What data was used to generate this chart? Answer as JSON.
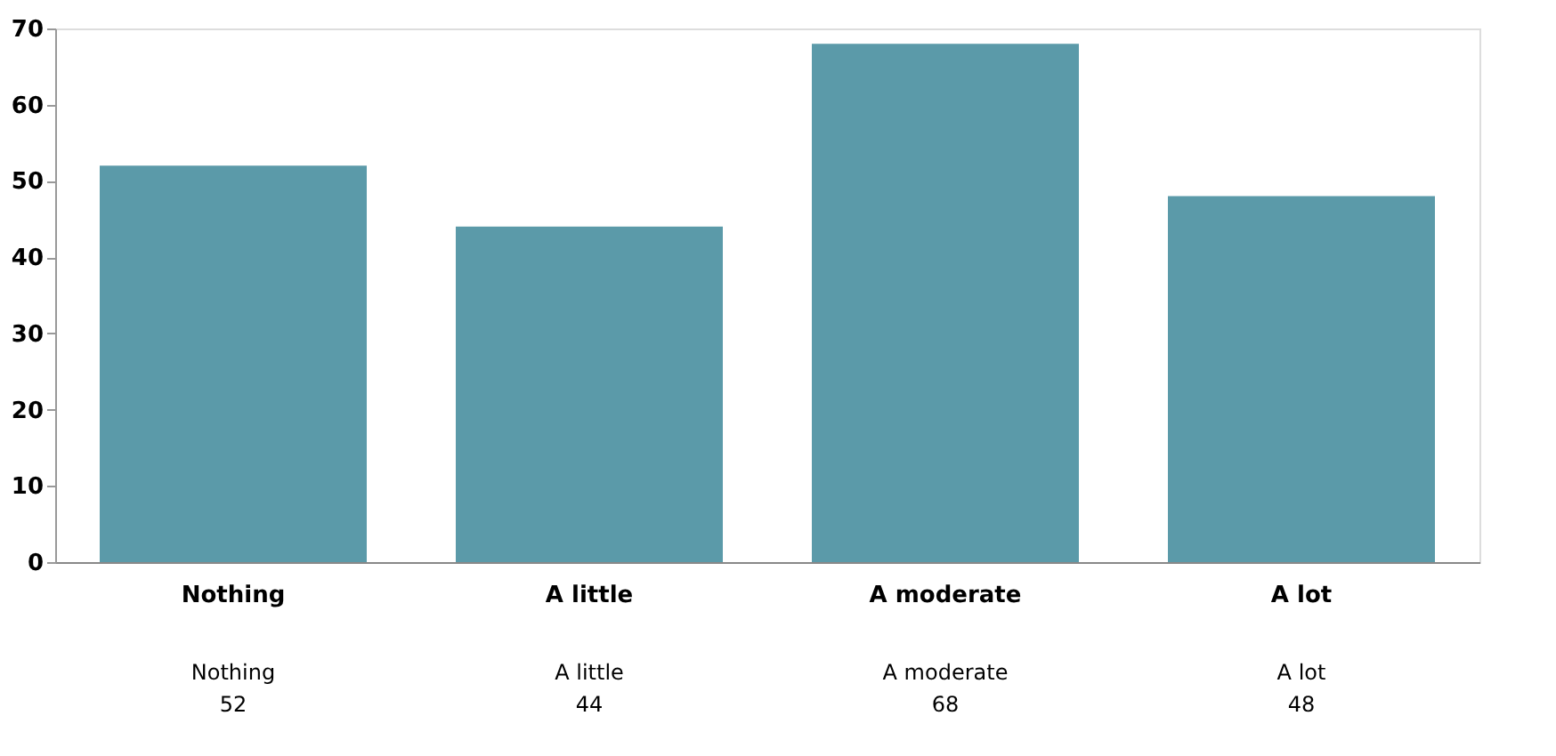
{
  "chart_data": {
    "type": "bar",
    "categories": [
      "Nothing",
      "A little",
      "A moderate",
      "A lot"
    ],
    "values": [
      52,
      44,
      68,
      48
    ],
    "color": "#5b9aa9",
    "ylim": [
      0,
      70
    ],
    "yticks": [
      0,
      10,
      20,
      30,
      40,
      50,
      60,
      70
    ],
    "grid": false,
    "data_labels": true
  }
}
